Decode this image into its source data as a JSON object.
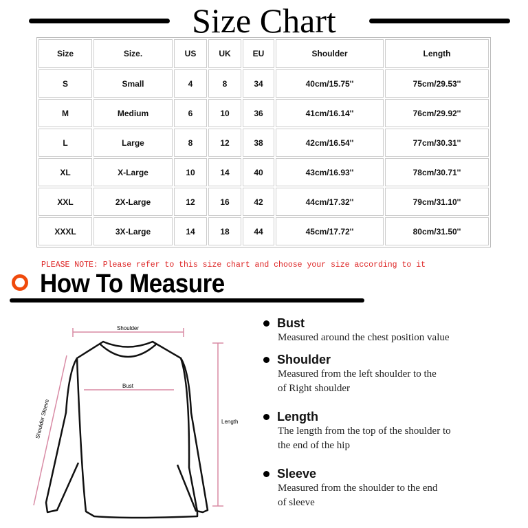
{
  "title": "Size Chart",
  "table": {
    "headers": [
      "Size",
      "Size.",
      "US",
      "UK",
      "EU",
      "Shoulder",
      "Length"
    ],
    "rows": [
      [
        "S",
        "Small",
        "4",
        "8",
        "34",
        "40cm/15.75''",
        "75cm/29.53''"
      ],
      [
        "M",
        "Medium",
        "6",
        "10",
        "36",
        "41cm/16.14''",
        "76cm/29.92''"
      ],
      [
        "L",
        "Large",
        "8",
        "12",
        "38",
        "42cm/16.54''",
        "77cm/30.31''"
      ],
      [
        "XL",
        "X-Large",
        "10",
        "14",
        "40",
        "43cm/16.93''",
        "78cm/30.71''"
      ],
      [
        "XXL",
        "2X-Large",
        "12",
        "16",
        "42",
        "44cm/17.32''",
        "79cm/31.10''"
      ],
      [
        "XXXL",
        "3X-Large",
        "14",
        "18",
        "44",
        "45cm/17.72''",
        "80cm/31.50''"
      ]
    ]
  },
  "note": "PLEASE NOTE: Please refer to this size chart and choose your size according to it",
  "how_to_measure": "How To Measure",
  "diagram": {
    "shoulder": "Shoulder",
    "bust": "Bust",
    "length": "Length",
    "sleeve": "Shoulder Sleeve"
  },
  "measures": [
    {
      "title": "Bust",
      "lines": [
        "Measured around the chest position value"
      ]
    },
    {
      "title": "Shoulder",
      "lines": [
        "Measured from the left shoulder to the",
        "of Right shoulder"
      ]
    },
    {
      "title": "Length",
      "lines": [
        "The length from the top of the shoulder to",
        "the end of the hip"
      ]
    },
    {
      "title": "Sleeve",
      "lines": [
        "Measured from the shoulder to the end",
        "of sleeve"
      ]
    }
  ],
  "colors": {
    "accent": "#f04a0c",
    "note": "#dd2222",
    "measure_line": "#d88aa4"
  }
}
